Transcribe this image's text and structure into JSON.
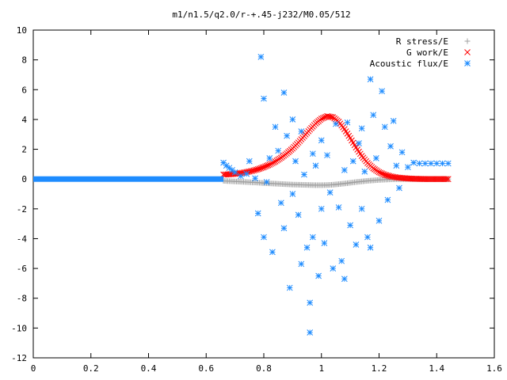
{
  "chart_data": {
    "type": "scatter",
    "title": "m1/n1.5/q2.0/r-+.45-j232/M0.05/512",
    "xlabel": "",
    "ylabel": "",
    "xlim": [
      0,
      1.6
    ],
    "ylim": [
      -12,
      10
    ],
    "x_ticks": [
      "0",
      "0.2",
      "0.4",
      "0.6",
      "0.8",
      "1",
      "1.2",
      "1.4",
      "1.6"
    ],
    "y_ticks": [
      "10",
      "8",
      "6",
      "4",
      "2",
      "0",
      "-2",
      "-4",
      "-6",
      "-8",
      "-10",
      "-12"
    ],
    "grid": false,
    "legend_position": "top-right",
    "series": [
      {
        "name": "R stress/E",
        "marker": "plus",
        "color": "#a0a0a0",
        "points": [
          [
            0.66,
            -0.12
          ],
          [
            0.68,
            -0.14
          ],
          [
            0.7,
            -0.16
          ],
          [
            0.72,
            -0.18
          ],
          [
            0.74,
            -0.2
          ],
          [
            0.76,
            -0.22
          ],
          [
            0.78,
            -0.24
          ],
          [
            0.8,
            -0.27
          ],
          [
            0.82,
            -0.29
          ],
          [
            0.84,
            -0.31
          ],
          [
            0.86,
            -0.33
          ],
          [
            0.88,
            -0.35
          ],
          [
            0.9,
            -0.37
          ],
          [
            0.92,
            -0.38
          ],
          [
            0.94,
            -0.39
          ],
          [
            0.96,
            -0.4
          ],
          [
            0.98,
            -0.41
          ],
          [
            1.0,
            -0.41
          ],
          [
            1.02,
            -0.4
          ],
          [
            1.04,
            -0.38
          ],
          [
            1.06,
            -0.34
          ],
          [
            1.08,
            -0.3
          ],
          [
            1.1,
            -0.25
          ],
          [
            1.12,
            -0.2
          ],
          [
            1.14,
            -0.16
          ],
          [
            1.16,
            -0.12
          ],
          [
            1.18,
            -0.09
          ],
          [
            1.2,
            -0.06
          ],
          [
            1.22,
            -0.04
          ],
          [
            1.24,
            -0.02
          ],
          [
            1.26,
            -0.01
          ],
          [
            1.28,
            0.0
          ],
          [
            1.3,
            0.0
          ],
          [
            1.32,
            0.0
          ],
          [
            1.34,
            0.0
          ],
          [
            1.36,
            0.0
          ],
          [
            1.38,
            0.0
          ],
          [
            1.4,
            0.0
          ],
          [
            1.42,
            0.0
          ],
          [
            1.44,
            0.0
          ]
        ]
      },
      {
        "name": "G work/E",
        "marker": "cross",
        "color": "#ff0000",
        "points": [
          [
            0.66,
            0.3
          ],
          [
            0.68,
            0.32
          ],
          [
            0.7,
            0.35
          ],
          [
            0.72,
            0.4
          ],
          [
            0.74,
            0.47
          ],
          [
            0.76,
            0.55
          ],
          [
            0.78,
            0.66
          ],
          [
            0.8,
            0.8
          ],
          [
            0.82,
            0.97
          ],
          [
            0.84,
            1.18
          ],
          [
            0.86,
            1.43
          ],
          [
            0.88,
            1.72
          ],
          [
            0.9,
            2.05
          ],
          [
            0.92,
            2.45
          ],
          [
            0.94,
            2.88
          ],
          [
            0.96,
            3.32
          ],
          [
            0.98,
            3.73
          ],
          [
            1.0,
            4.05
          ],
          [
            1.02,
            4.22
          ],
          [
            1.04,
            4.15
          ],
          [
            1.06,
            3.85
          ],
          [
            1.08,
            3.35
          ],
          [
            1.1,
            2.75
          ],
          [
            1.12,
            2.12
          ],
          [
            1.14,
            1.55
          ],
          [
            1.16,
            1.08
          ],
          [
            1.18,
            0.72
          ],
          [
            1.2,
            0.46
          ],
          [
            1.22,
            0.29
          ],
          [
            1.24,
            0.18
          ],
          [
            1.26,
            0.11
          ],
          [
            1.28,
            0.07
          ],
          [
            1.3,
            0.04
          ],
          [
            1.32,
            0.02
          ],
          [
            1.34,
            0.01
          ],
          [
            1.36,
            0.0
          ],
          [
            1.38,
            0.0
          ],
          [
            1.4,
            0.0
          ],
          [
            1.42,
            0.0
          ],
          [
            1.44,
            0.0
          ]
        ]
      },
      {
        "name": "Acoustic flux/E",
        "marker": "star",
        "color": "#1e8cff",
        "baseline": {
          "x_from": 0.0,
          "x_to": 0.66,
          "y": 0.0
        },
        "points": [
          [
            0.66,
            1.1
          ],
          [
            0.67,
            0.9
          ],
          [
            0.68,
            0.75
          ],
          [
            0.69,
            0.6
          ],
          [
            0.7,
            0.45
          ],
          [
            0.72,
            0.2
          ],
          [
            0.74,
            0.35
          ],
          [
            0.75,
            1.2
          ],
          [
            0.77,
            0.05
          ],
          [
            0.79,
            8.2
          ],
          [
            0.8,
            5.4
          ],
          [
            0.78,
            -2.3
          ],
          [
            0.8,
            -3.9
          ],
          [
            0.81,
            -0.2
          ],
          [
            0.82,
            1.4
          ],
          [
            0.83,
            -4.9
          ],
          [
            0.84,
            3.5
          ],
          [
            0.85,
            1.9
          ],
          [
            0.86,
            -1.6
          ],
          [
            0.87,
            5.8
          ],
          [
            0.87,
            -3.3
          ],
          [
            0.88,
            2.9
          ],
          [
            0.89,
            -7.3
          ],
          [
            0.9,
            4.0
          ],
          [
            0.9,
            -1.0
          ],
          [
            0.91,
            1.2
          ],
          [
            0.92,
            -2.4
          ],
          [
            0.93,
            3.2
          ],
          [
            0.93,
            -5.7
          ],
          [
            0.94,
            0.3
          ],
          [
            0.95,
            -4.6
          ],
          [
            0.96,
            -8.3
          ],
          [
            0.96,
            -10.3
          ],
          [
            0.97,
            1.7
          ],
          [
            0.97,
            -3.9
          ],
          [
            0.98,
            0.9
          ],
          [
            0.99,
            -6.5
          ],
          [
            1.0,
            2.6
          ],
          [
            1.0,
            -2.0
          ],
          [
            1.01,
            -4.3
          ],
          [
            1.02,
            1.6
          ],
          [
            1.03,
            -0.9
          ],
          [
            1.04,
            -6.0
          ],
          [
            1.05,
            3.7
          ],
          [
            1.06,
            -1.9
          ],
          [
            1.07,
            -5.5
          ],
          [
            1.08,
            0.6
          ],
          [
            1.08,
            -6.7
          ],
          [
            1.09,
            3.8
          ],
          [
            1.1,
            -3.1
          ],
          [
            1.11,
            1.2
          ],
          [
            1.12,
            -4.4
          ],
          [
            1.13,
            2.4
          ],
          [
            1.14,
            3.4
          ],
          [
            1.14,
            -2.0
          ],
          [
            1.15,
            0.5
          ],
          [
            1.16,
            -3.9
          ],
          [
            1.17,
            6.7
          ],
          [
            1.17,
            -4.6
          ],
          [
            1.18,
            4.3
          ],
          [
            1.19,
            1.4
          ],
          [
            1.2,
            -2.8
          ],
          [
            1.21,
            5.9
          ],
          [
            1.22,
            3.5
          ],
          [
            1.23,
            -1.4
          ],
          [
            1.24,
            2.2
          ],
          [
            1.25,
            3.9
          ],
          [
            1.26,
            0.9
          ],
          [
            1.27,
            -0.6
          ],
          [
            1.28,
            1.8
          ],
          [
            1.3,
            0.8
          ],
          [
            1.32,
            1.1
          ],
          [
            1.34,
            1.05
          ],
          [
            1.36,
            1.05
          ],
          [
            1.38,
            1.05
          ],
          [
            1.4,
            1.05
          ],
          [
            1.42,
            1.05
          ],
          [
            1.44,
            1.05
          ]
        ]
      }
    ]
  }
}
